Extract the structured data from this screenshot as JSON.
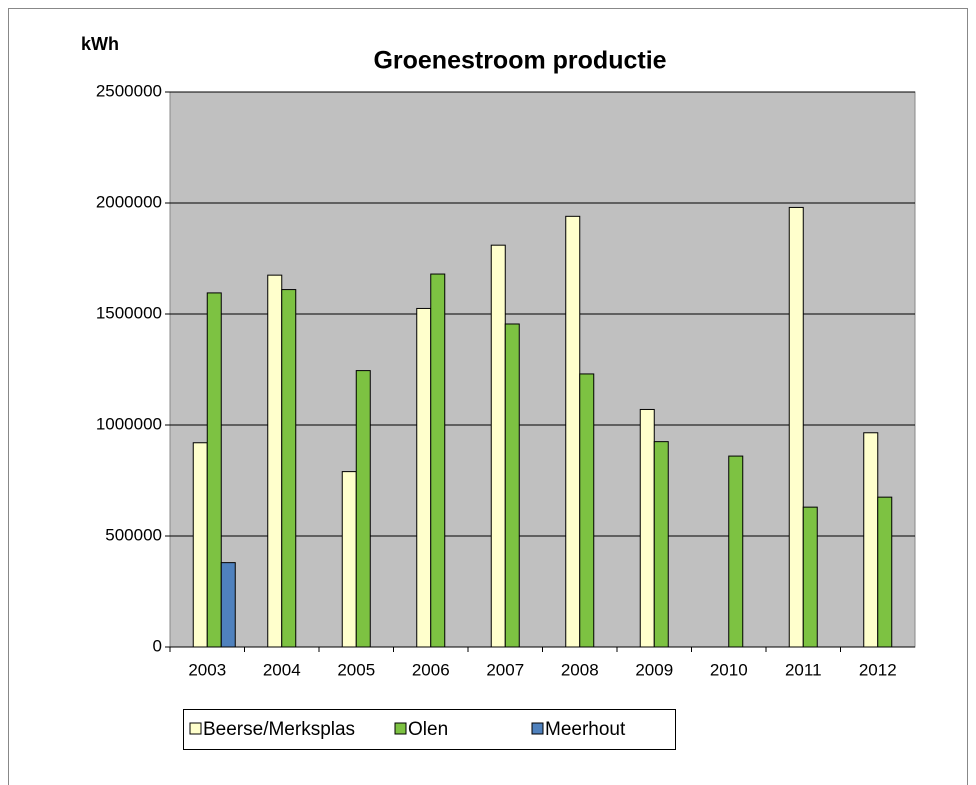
{
  "chart_data": {
    "type": "bar",
    "title": "Groenestroom productie",
    "y_label": "kWh",
    "categories": [
      "2003",
      "2004",
      "2005",
      "2006",
      "2007",
      "2008",
      "2009",
      "2010",
      "2011",
      "2012"
    ],
    "series": [
      {
        "name": "Beerse/Merksplas",
        "color": "#ffffcc",
        "values": [
          920000,
          1675000,
          790000,
          1525000,
          1810000,
          1940000,
          1070000,
          0,
          1980000,
          965000
        ]
      },
      {
        "name": "Olen",
        "color": "#7dc242",
        "values": [
          1595000,
          1610000,
          1245000,
          1680000,
          1455000,
          1230000,
          925000,
          860000,
          630000,
          675000
        ]
      },
      {
        "name": "Meerhout",
        "color": "#4f81bd",
        "values": [
          380000,
          0,
          0,
          0,
          0,
          0,
          0,
          0,
          0,
          0
        ]
      }
    ],
    "ylim": [
      0,
      2500000
    ],
    "yticks": [
      0,
      500000,
      1000000,
      1500000,
      2000000,
      2500000
    ],
    "grid": true,
    "legend": "bottom"
  }
}
